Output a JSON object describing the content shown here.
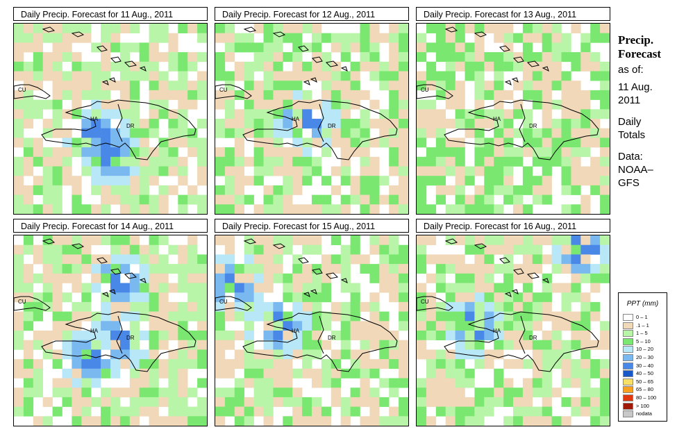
{
  "panels": [
    {
      "title": "Daily Precip. Forecast for  11 Aug., 2011"
    },
    {
      "title": "Daily Precip. Forecast for  12 Aug., 2011"
    },
    {
      "title": "Daily Precip. Forecast for  13 Aug., 2011"
    },
    {
      "title": "Daily Precip. Forecast for  14 Aug., 2011"
    },
    {
      "title": "Daily Precip. Forecast for  15 Aug., 2011"
    },
    {
      "title": "Daily Precip. Forecast for  16 Aug., 2011"
    }
  ],
  "map_labels": {
    "cuba": "CU",
    "haiti": "HA",
    "dr": "DR"
  },
  "side": {
    "title_line1": "Precip.",
    "title_line2": "Forecast",
    "asof": "as of:",
    "date_line1": "11 Aug.",
    "date_line2": "2011",
    "daily_line1": "Daily",
    "daily_line2": "Totals",
    "data_line1": "Data:",
    "data_line2": "NOAA–",
    "data_line3": "GFS"
  },
  "legend": {
    "title": "PPT (mm)",
    "items": [
      {
        "label": "0 – 1",
        "color": "#ffffff"
      },
      {
        "label": ".1 – 1",
        "color": "#f0d8b8"
      },
      {
        "label": "1 – 5",
        "color": "#b8f5a8"
      },
      {
        "label": "5 – 10",
        "color": "#7ae870"
      },
      {
        "label": "10 – 20",
        "color": "#b8e8f8"
      },
      {
        "label": "20 – 30",
        "color": "#7ab8f0"
      },
      {
        "label": "30 – 40",
        "color": "#4a88e8"
      },
      {
        "label": "40 – 50",
        "color": "#1858c8"
      },
      {
        "label": "50 – 65",
        "color": "#f8e068"
      },
      {
        "label": "65 – 80",
        "color": "#f8a020"
      },
      {
        "label": "80 – 100",
        "color": "#e03810"
      },
      {
        "label": "> 100",
        "color": "#a01808"
      },
      {
        "label": "nodata",
        "color": "#c8c8c8"
      }
    ]
  }
}
